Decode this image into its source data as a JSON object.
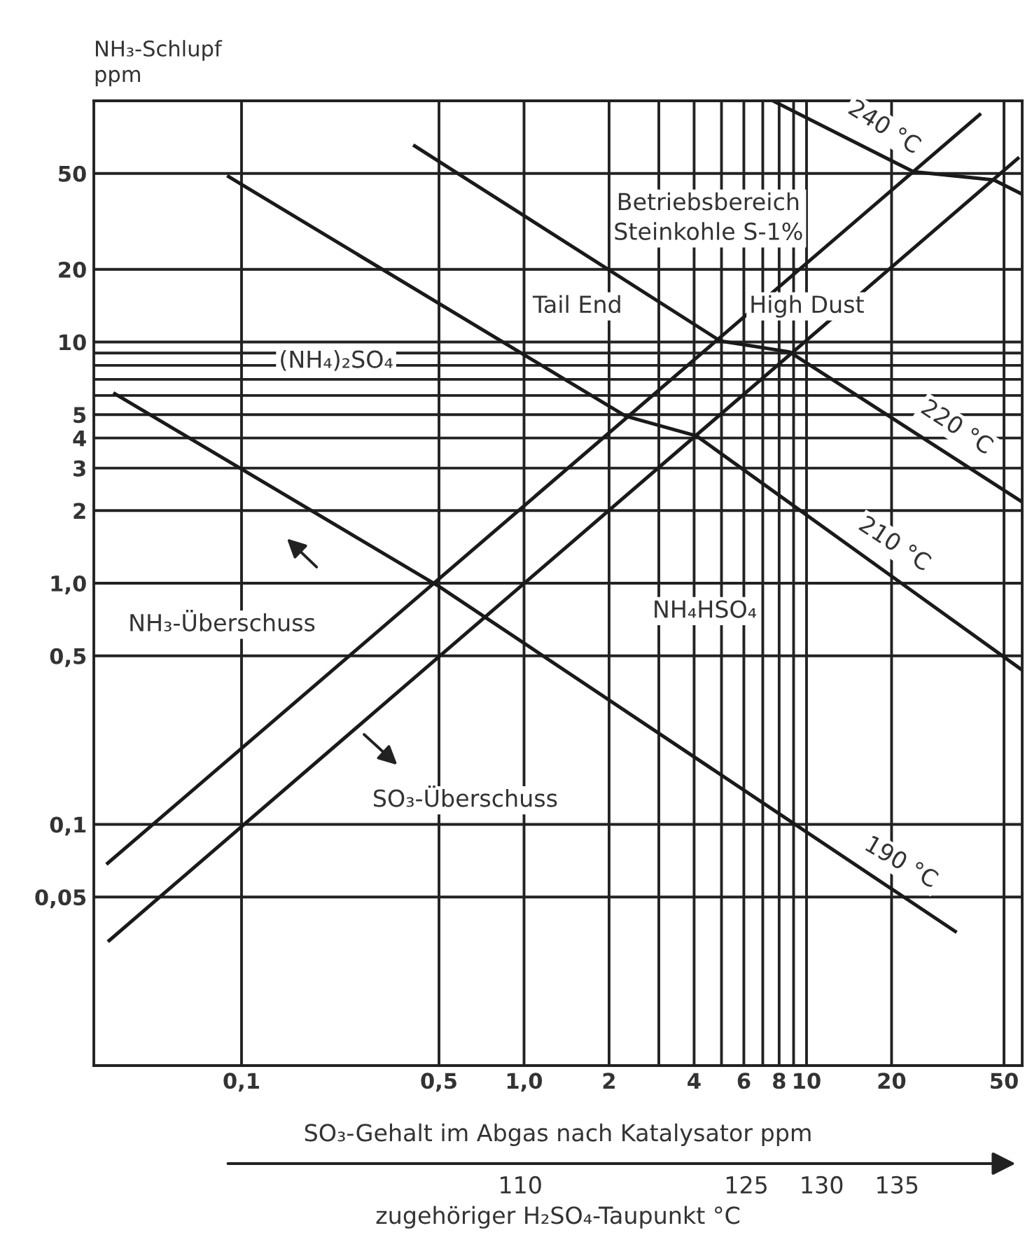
{
  "chart_data": {
    "type": "line",
    "xlabel": "SO₃-Gehalt im Abgas nach Katalysator ppm",
    "ylabel": "NH₃-Schlupf\nppm",
    "x2label": "zugehöriger H₂SO₄-Taupunkt °C",
    "log": "xy",
    "grid": true,
    "marker": "none",
    "line_style": "solid",
    "xlim": [
      0.03,
      58
    ],
    "ylim": [
      0.01,
      100
    ],
    "x2lim": [
      81.7,
      143.3
    ],
    "xticks": [
      {
        "value": 0.1,
        "label": "0,1"
      },
      {
        "value": 0.5,
        "label": "0,5"
      },
      {
        "value": 1,
        "label": "1,0"
      },
      2,
      {
        "value": 3,
        "label": null
      },
      4,
      {
        "value": 5,
        "label": null
      },
      6,
      {
        "value": 7,
        "label": null
      },
      8,
      {
        "value": 9,
        "label": null
      },
      10,
      20,
      50
    ],
    "yticks": [
      {
        "value": 0.05,
        "label": "0,05"
      },
      {
        "value": 0.1,
        "label": "0,1"
      },
      {
        "value": 0.5,
        "label": "0,5"
      },
      {
        "value": 1,
        "label": "1,0"
      },
      2,
      3,
      4,
      5,
      {
        "value": 6,
        "label": null
      },
      {
        "value": 7,
        "label": null
      },
      {
        "value": 8,
        "label": null
      },
      {
        "value": 9,
        "label": null
      },
      10,
      20,
      50
    ],
    "x2ticks": [
      110,
      125,
      130,
      135
    ],
    "series": [
      {
        "color": "#1a1a1a",
        "x": [
          7.6,
          23.9,
          46,
          58
        ],
        "values": [
          100,
          50.8,
          47,
          41
        ]
      },
      {
        "color": "#1a1a1a",
        "x": [
          0.41,
          4.95,
          8.7,
          58
        ],
        "values": [
          65,
          10.1,
          9.1,
          2.17
        ]
      },
      {
        "color": "#1a1a1a",
        "x": [
          0.09,
          2.29,
          4.08,
          58
        ],
        "values": [
          48.5,
          4.93,
          4.08,
          0.436
        ]
      },
      {
        "color": "#1a1a1a",
        "x": [
          0.0356,
          0.5,
          33.6
        ],
        "values": [
          6.1,
          0.97,
          0.036
        ]
      },
      {
        "color": "#1a1a1a",
        "x": [
          0.0336,
          41
        ],
        "values": [
          0.069,
          87.6
        ]
      },
      {
        "color": "#1a1a1a",
        "x": [
          0.034,
          56
        ],
        "values": [
          0.033,
          57.7
        ]
      }
    ],
    "annotations": [
      "240 °C",
      "220 °C",
      "210 °C",
      "190 °C",
      "Betriebsbereich\nSteinkohle S-1%",
      "Tail End",
      "High Dust",
      "(NH₄)₂SO₄",
      "NH₄HSO₄",
      "NH₃-Überschuss",
      "SO₃-Überschuss"
    ]
  }
}
